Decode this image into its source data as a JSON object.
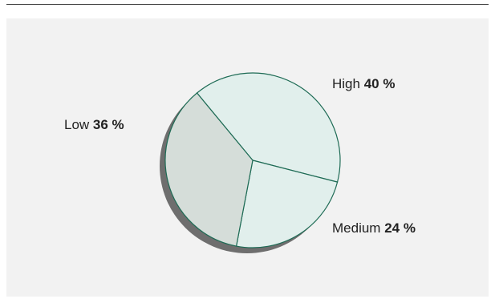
{
  "chart_data": {
    "type": "pie",
    "title": "",
    "slices": [
      {
        "label": "High",
        "value": 40,
        "value_text": "40 %",
        "color": "#e1efec"
      },
      {
        "label": "Medium",
        "value": 24,
        "value_text": "24 %",
        "color": "#e1efec"
      },
      {
        "label": "Low",
        "value": 36,
        "value_text": "36 %",
        "color": "#d5ddd9"
      }
    ],
    "shadow_color": "#6e6e6e",
    "edge_color": "#1e6b55",
    "background_color": "#f2f2f2"
  }
}
